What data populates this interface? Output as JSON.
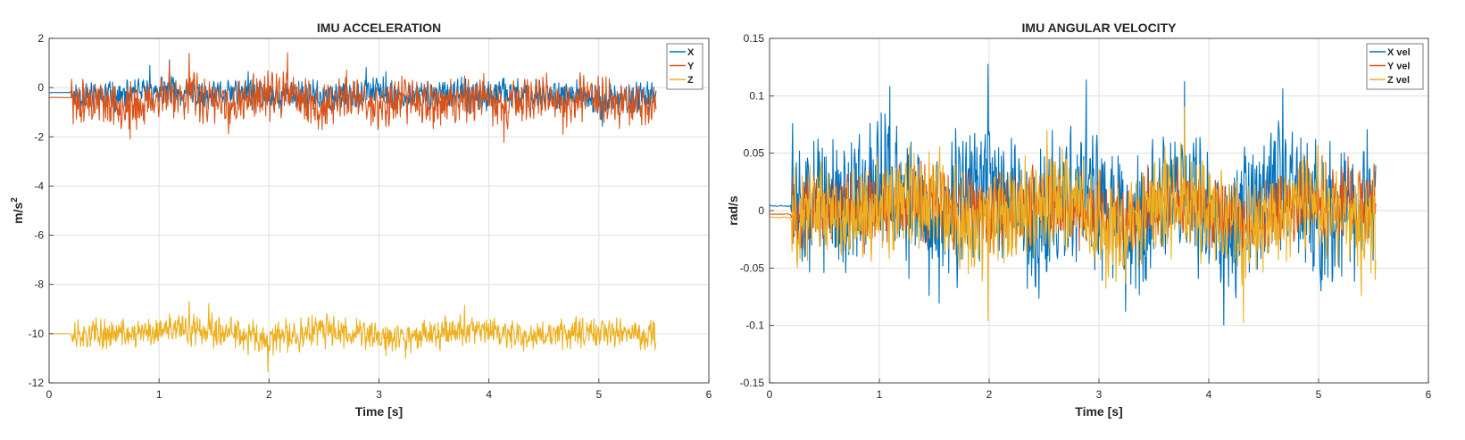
{
  "chart_data": [
    {
      "type": "line",
      "title": "IMU ACCELERATION",
      "xlabel": "Time [s]",
      "ylabel": "m/s^2",
      "ylabel_base": "m/s",
      "ylabel_sup": "2",
      "xlim": [
        0,
        6
      ],
      "ylim": [
        -12,
        2
      ],
      "xticks": [
        0,
        1,
        2,
        3,
        4,
        5,
        6
      ],
      "xtick_labels": [
        "0",
        "1",
        "2",
        "3",
        "4",
        "5",
        "6"
      ],
      "yticks": [
        -12,
        -10,
        -8,
        -6,
        -4,
        -2,
        0,
        2
      ],
      "ytick_labels": [
        "-12",
        "-10",
        "-8",
        "-6",
        "-4",
        "-2",
        "0",
        "2"
      ],
      "grid": true,
      "legend_position": "top-right",
      "x_end": 5.52,
      "series": [
        {
          "name": "X",
          "color": "#0072BD",
          "pre_value": -0.2,
          "center": -0.35,
          "amplitude": 0.55,
          "noise": 0.25,
          "seed": 11,
          "values": [
            -0.2,
            -0.2,
            -0.3,
            0.9,
            1.3,
            -0.8,
            0.1,
            0.6,
            -0.5,
            0.3,
            -1.0,
            0.2,
            1.2,
            -0.6,
            0.0,
            0.4,
            -0.9,
            0.5,
            -0.3,
            0.2,
            -0.4,
            -1.8,
            -0.5,
            -0.8
          ]
        },
        {
          "name": "Y",
          "color": "#D95319",
          "pre_value": -0.4,
          "center": -0.55,
          "amplitude": 0.85,
          "noise": 0.35,
          "seed": 23,
          "values": [
            -0.4,
            -0.4,
            -2.2,
            1.1,
            1.3,
            -2.2,
            0.5,
            1.4,
            -2.6,
            1.0,
            -2.0,
            0.6,
            -1.5,
            0.8,
            -2.3,
            0.9,
            -1.8,
            0.7,
            -1.0,
            -2.3
          ]
        },
        {
          "name": "Z",
          "color": "#EDB120",
          "pre_value": -10.0,
          "center": -10.0,
          "amplitude": 0.55,
          "noise": 0.35,
          "seed": 37,
          "values": [
            -10.0,
            -10.0,
            -8.5,
            -11.6,
            -9.0,
            -11.2,
            -8.7,
            -10.9,
            -9.2,
            -10.6
          ]
        }
      ]
    },
    {
      "type": "line",
      "title": "IMU ANGULAR VELOCITY",
      "xlabel": "Time [s]",
      "ylabel": "rad/s",
      "xlim": [
        0,
        6
      ],
      "ylim": [
        -0.15,
        0.15
      ],
      "xticks": [
        0,
        1,
        2,
        3,
        4,
        5,
        6
      ],
      "xtick_labels": [
        "0",
        "1",
        "2",
        "3",
        "4",
        "5",
        "6"
      ],
      "yticks": [
        -0.15,
        -0.1,
        -0.05,
        0,
        0.05,
        0.1,
        0.15
      ],
      "ytick_labels": [
        "-0.15",
        "-0.1",
        "-0.05",
        "0",
        "0.05",
        "0.1",
        "0.15"
      ],
      "grid": true,
      "legend_position": "top-right",
      "x_end": 5.52,
      "series": [
        {
          "name": "X vel",
          "color": "#0072BD",
          "pre_value": 0.004,
          "center": 0.005,
          "amplitude": 0.055,
          "noise": 0.02,
          "seed": 51,
          "values": [
            0.004,
            0.004,
            0.12,
            -0.115,
            0.13,
            -0.11,
            0.135,
            -0.13,
            0.125,
            -0.14,
            0.12,
            -0.09,
            0.0
          ]
        },
        {
          "name": "Y vel",
          "color": "#D95319",
          "pre_value": -0.003,
          "center": 0.002,
          "amplitude": 0.03,
          "noise": 0.012,
          "seed": 67,
          "values": [
            -0.003,
            -0.003,
            0.05,
            -0.06,
            0.06,
            -0.05,
            0.05,
            -0.06,
            0.05,
            0.02
          ]
        },
        {
          "name": "Z vel",
          "color": "#EDB120",
          "pre_value": -0.006,
          "center": -0.002,
          "amplitude": 0.04,
          "noise": 0.015,
          "seed": 83,
          "values": [
            -0.006,
            -0.006,
            0.075,
            -0.1,
            0.085,
            -0.09,
            0.108,
            -0.1,
            0.07,
            -0.11
          ]
        }
      ]
    }
  ]
}
